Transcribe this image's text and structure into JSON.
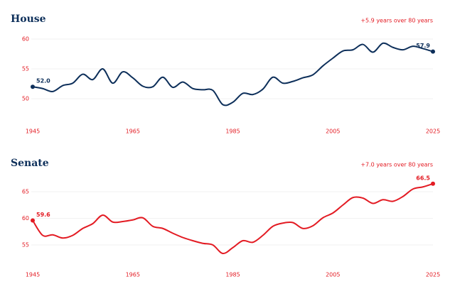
{
  "chart_data": [
    {
      "type": "line",
      "title": "House",
      "annotation": "+5.9 years over 80 years",
      "color": "#0d2f5a",
      "x": [
        1945,
        1947,
        1949,
        1951,
        1953,
        1955,
        1957,
        1959,
        1961,
        1963,
        1965,
        1967,
        1969,
        1971,
        1973,
        1975,
        1977,
        1979,
        1981,
        1983,
        1985,
        1987,
        1989,
        1991,
        1993,
        1995,
        1997,
        1999,
        2001,
        2003,
        2005,
        2007,
        2009,
        2011,
        2013,
        2015,
        2017,
        2019,
        2021,
        2023,
        2025
      ],
      "values": [
        52.0,
        51.7,
        51.2,
        52.2,
        52.6,
        54.1,
        53.2,
        55.0,
        52.6,
        54.5,
        53.5,
        52.1,
        52.0,
        53.6,
        51.9,
        52.8,
        51.7,
        51.5,
        51.4,
        49.0,
        49.4,
        50.9,
        50.7,
        51.6,
        53.6,
        52.6,
        52.9,
        53.5,
        54.0,
        55.5,
        56.8,
        58.0,
        58.2,
        59.1,
        57.8,
        59.3,
        58.6,
        58.2,
        58.8,
        58.4,
        57.9
      ],
      "value_labels": [
        "52.0",
        null,
        null,
        null,
        null,
        null,
        null,
        null,
        null,
        null,
        null,
        null,
        null,
        null,
        null,
        null,
        null,
        null,
        null,
        null,
        null,
        null,
        null,
        null,
        null,
        null,
        null,
        null,
        null,
        null,
        null,
        null,
        null,
        null,
        null,
        null,
        null,
        null,
        null,
        null,
        "57.9"
      ],
      "xlim": [
        1945,
        2025
      ],
      "xticks": [
        1945,
        1965,
        1985,
        2005,
        2025
      ],
      "ylim": [
        47,
        61
      ],
      "yticks": [
        50,
        55,
        60
      ],
      "grid": true
    },
    {
      "type": "line",
      "title": "Senate",
      "annotation": "+7.0 years over 80 years",
      "color": "#e31b23",
      "x": [
        1945,
        1947,
        1949,
        1951,
        1953,
        1955,
        1957,
        1959,
        1961,
        1963,
        1965,
        1967,
        1969,
        1971,
        1973,
        1975,
        1977,
        1979,
        1981,
        1983,
        1985,
        1987,
        1989,
        1991,
        1993,
        1995,
        1997,
        1999,
        2001,
        2003,
        2005,
        2007,
        2009,
        2011,
        2013,
        2015,
        2017,
        2019,
        2021,
        2023,
        2025
      ],
      "values": [
        59.6,
        56.8,
        56.9,
        56.3,
        56.8,
        58.1,
        59.0,
        60.6,
        59.3,
        59.4,
        59.7,
        60.1,
        58.5,
        58.1,
        57.2,
        56.4,
        55.8,
        55.3,
        55.0,
        53.4,
        54.5,
        55.8,
        55.5,
        56.8,
        58.5,
        59.1,
        59.2,
        58.1,
        58.6,
        60.1,
        61.0,
        62.5,
        63.9,
        63.8,
        62.8,
        63.5,
        63.2,
        64.1,
        65.5,
        65.9,
        66.5
      ],
      "value_labels": [
        "59.6",
        null,
        null,
        null,
        null,
        null,
        null,
        null,
        null,
        null,
        null,
        null,
        null,
        null,
        null,
        null,
        null,
        null,
        null,
        null,
        null,
        null,
        null,
        null,
        null,
        null,
        null,
        null,
        null,
        null,
        null,
        null,
        null,
        null,
        null,
        null,
        null,
        null,
        null,
        null,
        "66.5"
      ],
      "xlim": [
        1945,
        2025
      ],
      "xticks": [
        1945,
        1965,
        1985,
        2005,
        2025
      ],
      "ylim": [
        52,
        67
      ],
      "yticks": [
        55,
        60,
        65
      ],
      "grid": true
    }
  ]
}
